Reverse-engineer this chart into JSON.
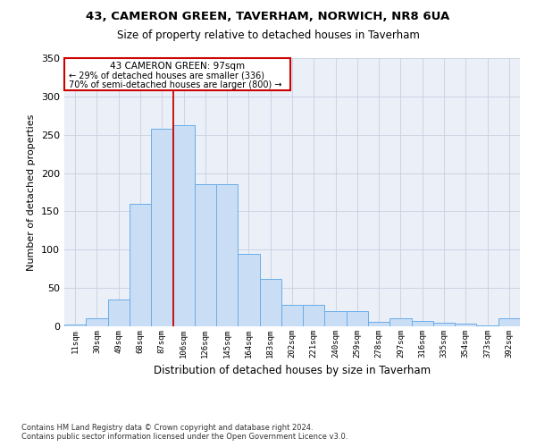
{
  "title1": "43, CAMERON GREEN, TAVERHAM, NORWICH, NR8 6UA",
  "title2": "Size of property relative to detached houses in Taverham",
  "xlabel": "Distribution of detached houses by size in Taverham",
  "ylabel": "Number of detached properties",
  "categories": [
    "11sqm",
    "30sqm",
    "49sqm",
    "68sqm",
    "87sqm",
    "106sqm",
    "126sqm",
    "145sqm",
    "164sqm",
    "183sqm",
    "202sqm",
    "221sqm",
    "240sqm",
    "259sqm",
    "278sqm",
    "297sqm",
    "316sqm",
    "335sqm",
    "354sqm",
    "373sqm",
    "392sqm"
  ],
  "values": [
    2,
    10,
    35,
    160,
    258,
    262,
    185,
    185,
    95,
    62,
    28,
    28,
    20,
    20,
    6,
    10,
    7,
    5,
    4,
    1,
    10
  ],
  "bar_color": "#c9ddf5",
  "bar_edge_color": "#6aaee8",
  "property_label": "43 CAMERON GREEN: 97sqm",
  "annotation_line1": "← 29% of detached houses are smaller (336)",
  "annotation_line2": "70% of semi-detached houses are larger (800) →",
  "vline_color": "#cc0000",
  "box_color": "#cc0000",
  "background_color": "#ffffff",
  "plot_bg_color": "#eaeff8",
  "grid_color": "#c8cfdf",
  "footer1": "Contains HM Land Registry data © Crown copyright and database right 2024.",
  "footer2": "Contains public sector information licensed under the Open Government Licence v3.0.",
  "ylim": [
    0,
    350
  ]
}
